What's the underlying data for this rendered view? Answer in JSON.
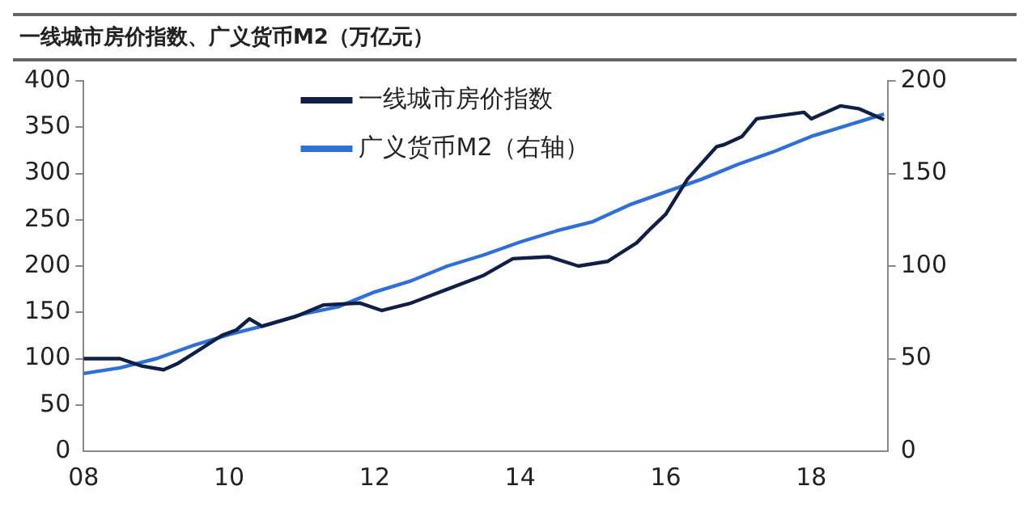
{
  "chart_data": {
    "type": "line",
    "title": "一线城市房价指数、广义货币M2（万亿元）",
    "xlim": [
      2008,
      2019.05
    ],
    "xticks": [
      {
        "value": 2008,
        "label": "08"
      },
      {
        "value": 2010,
        "label": "10"
      },
      {
        "value": 2012,
        "label": "12"
      },
      {
        "value": 2014,
        "label": "14"
      },
      {
        "value": 2016,
        "label": "16"
      },
      {
        "value": 2018,
        "label": "18"
      }
    ],
    "ylim": [
      0,
      400
    ],
    "yticks": [
      0,
      50,
      100,
      150,
      200,
      250,
      300,
      350,
      400
    ],
    "y2lim": [
      0,
      200
    ],
    "y2ticks": [
      0,
      50,
      100,
      150,
      200
    ],
    "grid": false,
    "legend": "top",
    "marker": "none",
    "line_style": "solid",
    "series": [
      {
        "name": "一线城市房价指数",
        "color": "#0f1f45",
        "x": [
          2008,
          2008.5,
          2008.8,
          2009.1,
          2009.3,
          2009.6,
          2009.9,
          2010.1,
          2010.28,
          2010.45,
          2010.9,
          2011.3,
          2011.8,
          2012.1,
          2012.5,
          2013,
          2013.5,
          2013.9,
          2014.4,
          2014.8,
          2015.2,
          2015.6,
          2015.8,
          2016,
          2016.3,
          2016.7,
          2016.8,
          2017.05,
          2017.25,
          2017.9,
          2018,
          2018.4,
          2018.65,
          2019
        ],
        "values": [
          100,
          100,
          92,
          88,
          95,
          110,
          125,
          131,
          143,
          135,
          145,
          158,
          160,
          152,
          160,
          175,
          190,
          208,
          210,
          200,
          205,
          225,
          241,
          256,
          294,
          329,
          331,
          340,
          359,
          366,
          359,
          373,
          370,
          358
        ]
      },
      {
        "name": "广义货币M2（右轴）",
        "color": "#2f6fd6",
        "axis": "y2",
        "x": [
          2008,
          2008.5,
          2009,
          2009.5,
          2010,
          2010.5,
          2011,
          2011.5,
          2012,
          2012.5,
          2013,
          2013.5,
          2014,
          2014.5,
          2015,
          2015.5,
          2016,
          2016.5,
          2017,
          2017.5,
          2018,
          2018.5,
          2019
        ],
        "values": [
          42,
          45,
          50,
          57,
          63,
          68,
          74,
          78,
          86,
          92,
          100,
          106,
          113,
          119,
          124,
          133,
          140,
          147,
          155,
          162,
          170,
          176,
          182
        ]
      }
    ]
  }
}
